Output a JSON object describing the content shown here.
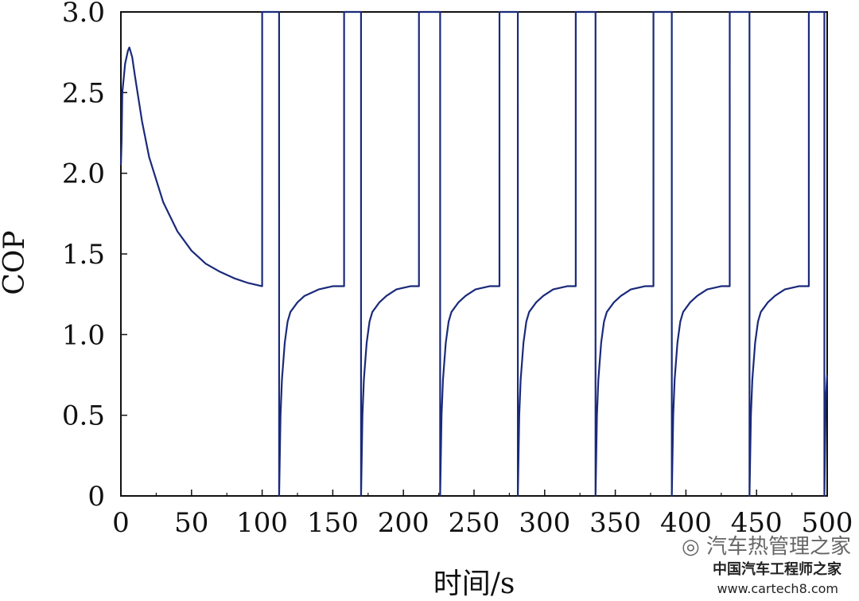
{
  "chart_data": {
    "type": "line",
    "title": "",
    "xlabel": "时间/s",
    "ylabel": "COP",
    "xlim": [
      0,
      500
    ],
    "ylim": [
      0,
      3.0
    ],
    "xticks": [
      "0",
      "50",
      "100",
      "150",
      "200",
      "250",
      "300",
      "350",
      "400",
      "450",
      "500"
    ],
    "yticks": [
      "0",
      "0.5",
      "1.0",
      "1.5",
      "2.0",
      "2.5",
      "3.0"
    ],
    "grid": false,
    "legend": "none",
    "series": [
      {
        "color": "#1a2a7a",
        "x": [
          0,
          0.5,
          1,
          3,
          5,
          6,
          8,
          10,
          15,
          20,
          30,
          40,
          50,
          60,
          70,
          80,
          90,
          100,
          100.01,
          112,
          112.01,
          113,
          114,
          116,
          118,
          120,
          125,
          130,
          140,
          150,
          158,
          158.01,
          170,
          170.01,
          171,
          172,
          174,
          176,
          178,
          183,
          188,
          195,
          205,
          211,
          211.01,
          226,
          226.01,
          227,
          228,
          230,
          232,
          234,
          239,
          244,
          251,
          261,
          268,
          268.01,
          281,
          281.01,
          282,
          283,
          285,
          287,
          289,
          294,
          299,
          306,
          316,
          322,
          322.01,
          336,
          336.01,
          337,
          338,
          340,
          342,
          344,
          349,
          354,
          361,
          371,
          377,
          377.01,
          390,
          390.01,
          391,
          392,
          394,
          396,
          398,
          403,
          408,
          415,
          425,
          431,
          431.01,
          445,
          445.01,
          446,
          447,
          449,
          451,
          453,
          458,
          463,
          470,
          480,
          487,
          487.01,
          498,
          498.01,
          499,
          500
        ],
        "y": [
          2.05,
          2.2,
          2.5,
          2.68,
          2.76,
          2.78,
          2.72,
          2.6,
          2.32,
          2.1,
          1.82,
          1.64,
          1.52,
          1.44,
          1.39,
          1.35,
          1.32,
          1.3,
          3.0,
          3.0,
          0.0,
          0.5,
          0.72,
          0.95,
          1.08,
          1.14,
          1.2,
          1.24,
          1.28,
          1.3,
          1.3,
          3.0,
          3.0,
          0.0,
          0.5,
          0.72,
          0.95,
          1.08,
          1.14,
          1.2,
          1.24,
          1.28,
          1.3,
          1.3,
          3.0,
          3.0,
          0.0,
          0.5,
          0.72,
          0.95,
          1.08,
          1.14,
          1.2,
          1.24,
          1.28,
          1.3,
          1.3,
          3.0,
          3.0,
          0.0,
          0.5,
          0.72,
          0.95,
          1.08,
          1.14,
          1.2,
          1.24,
          1.28,
          1.3,
          1.3,
          3.0,
          3.0,
          0.0,
          0.5,
          0.72,
          0.95,
          1.08,
          1.14,
          1.2,
          1.24,
          1.28,
          1.3,
          1.3,
          3.0,
          3.0,
          0.0,
          0.5,
          0.72,
          0.95,
          1.08,
          1.14,
          1.2,
          1.24,
          1.28,
          1.3,
          1.3,
          3.0,
          3.0,
          0.0,
          0.5,
          0.72,
          0.95,
          1.08,
          1.14,
          1.2,
          1.24,
          1.28,
          1.3,
          1.3,
          3.0,
          3.0,
          0.0,
          0.6,
          0.75
        ]
      }
    ]
  },
  "watermark": {
    "line1": "汽车热管理之家",
    "line2": "中国汽车工程师之家",
    "line3": "www.cartech8.com",
    "icon": "wechat-icon"
  }
}
